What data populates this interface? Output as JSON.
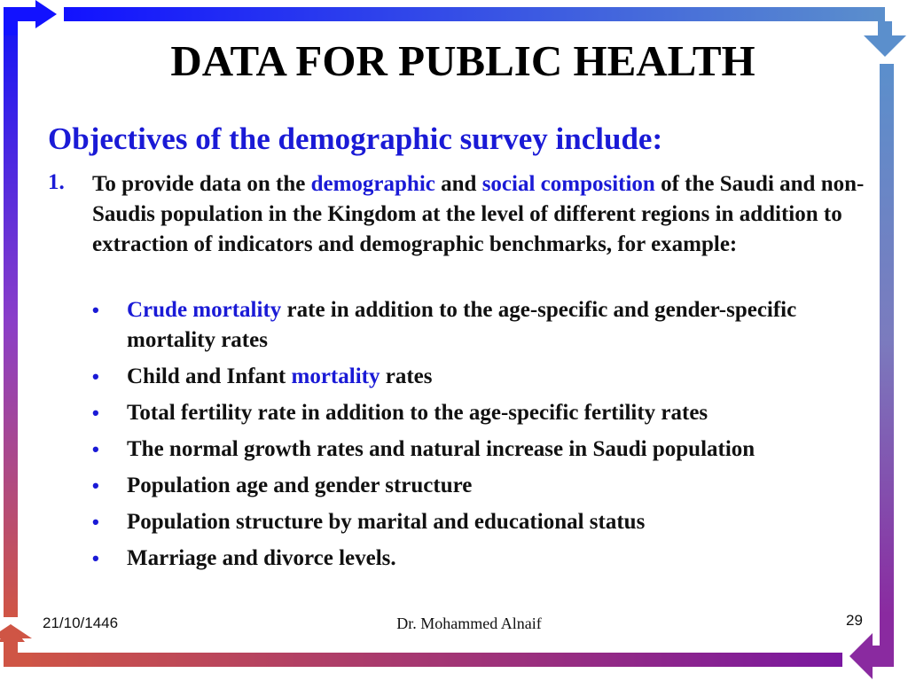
{
  "slide": {
    "title": "DATA FOR PUBLIC HEALTH",
    "subtitle": "Objectives of the demographic survey include:",
    "item_number": "1.",
    "para": {
      "t1": "To provide data on the ",
      "hl1": "demographic",
      "t2": " and ",
      "hl2": "social composition",
      "t3": " of the Saudi and non-Saudis population in the Kingdom at the level of different regions in addition to extraction of indicators and demographic benchmarks, for example:"
    },
    "bullet_marker": "•",
    "bullets": {
      "b1": {
        "hl": "Crude mortality",
        "text": " rate in addition to the age-specific and gender-specific mortality rates"
      },
      "b2": {
        "text": "Child and Infant ",
        "hl": "mortality",
        "text2": " rates"
      },
      "b3": "Total fertility rate in addition to the age-specific fertility rates",
      "b4": "The normal growth rates and natural increase in Saudi population",
      "b5": "Population age and gender structure",
      "b6": "Population structure by marital and educational status",
      "b7": "Marriage and divorce levels."
    }
  },
  "footer": {
    "date": "21/10/1446",
    "author": "Dr. Mohammed Alnaif",
    "page": "29"
  },
  "colors": {
    "accent": "#1a1ad6",
    "frame_top_start": "#1010ff",
    "frame_top_end": "#5a8ccf",
    "frame_bottom_start": "#c8554f",
    "frame_bottom_end": "#7a1aa0"
  }
}
